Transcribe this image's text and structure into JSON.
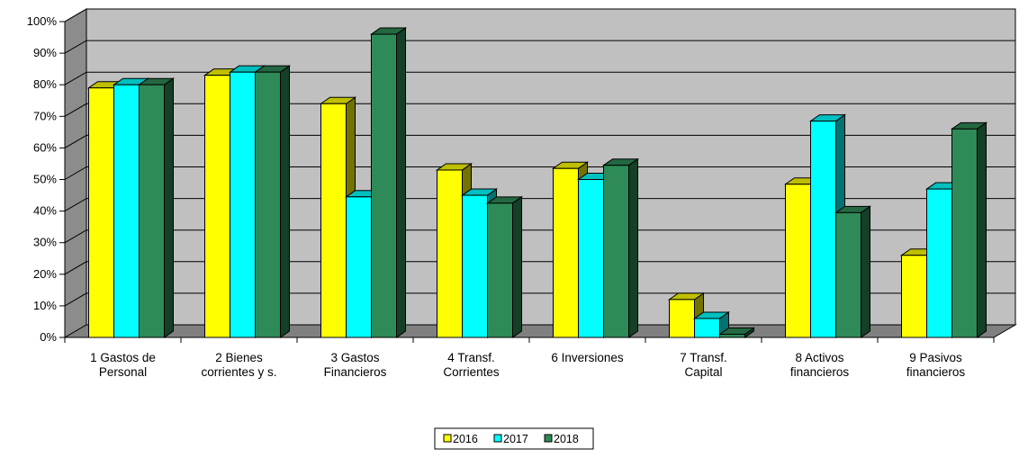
{
  "chart_data": {
    "type": "bar",
    "style": "3d-clustered-column",
    "categories": [
      [
        "1 Gastos de",
        "Personal"
      ],
      [
        "2 Bienes",
        "corrientes y s."
      ],
      [
        "3 Gastos",
        "Financieros"
      ],
      [
        "4 Transf.",
        "Corrientes"
      ],
      [
        "6 Inversiones"
      ],
      [
        "7 Transf.",
        "Capital"
      ],
      [
        "8 Activos",
        "financieros"
      ],
      [
        "9 Pasivos",
        "financieros"
      ]
    ],
    "series": [
      {
        "name": "2016",
        "color": "#ffff00",
        "values": [
          79,
          83,
          74,
          53,
          53.5,
          12,
          48.5,
          26
        ]
      },
      {
        "name": "2017",
        "color": "#00ffff",
        "values": [
          80,
          84,
          44.5,
          45,
          50,
          6,
          68.5,
          47
        ]
      },
      {
        "name": "2018",
        "color": "#2e8b57",
        "values": [
          80,
          84,
          96,
          42.5,
          54.5,
          1,
          39.5,
          66
        ]
      }
    ],
    "yticks": [
      "0%",
      "10%",
      "20%",
      "30%",
      "40%",
      "50%",
      "60%",
      "70%",
      "80%",
      "90%",
      "100%"
    ],
    "ylim": [
      0,
      100
    ],
    "grid": true,
    "legend_position": "bottom-center",
    "wall_color": "#c0c0c0",
    "floor_color": "#808080"
  }
}
